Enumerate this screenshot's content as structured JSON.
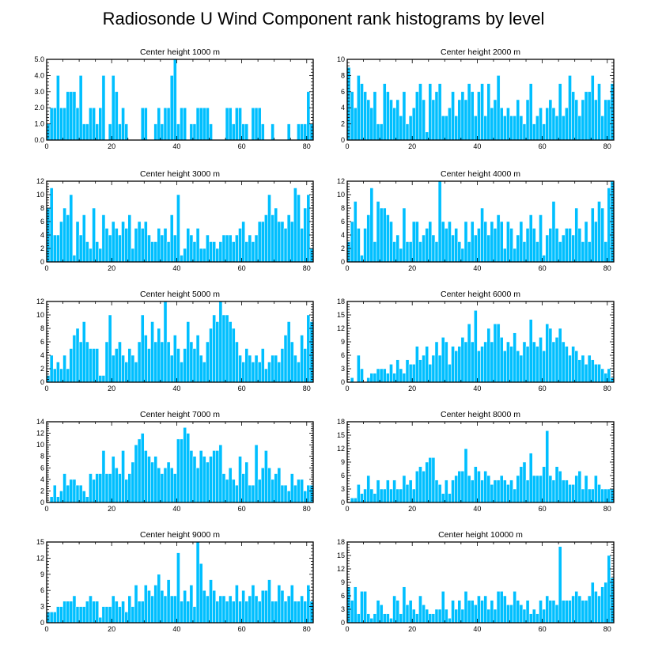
{
  "figure_title": "Radiosonde U Wind Component rank histograms by level",
  "colors": {
    "bar": "#00bfff",
    "bar_edge": "#ffffff",
    "frame": "#000000"
  },
  "chart_data": [
    {
      "type": "bar",
      "title": "Center height 1000 m",
      "x_start": 0,
      "xlim": [
        0,
        82
      ],
      "xticks": [
        0,
        20,
        40,
        60,
        80
      ],
      "ylim": [
        0,
        5
      ],
      "yticks": [
        0,
        1,
        2,
        3,
        4,
        5
      ],
      "ytick_labels": [
        "0.0",
        "1.0",
        "2.0",
        "3.0",
        "4.0",
        "5.0"
      ],
      "values": [
        1,
        2,
        2,
        4,
        2,
        2,
        3,
        3,
        3,
        2,
        4,
        1,
        1,
        2,
        2,
        1,
        2,
        4,
        0,
        1,
        4,
        3,
        1,
        2,
        1,
        0,
        0,
        0,
        0,
        2,
        2,
        0,
        0,
        1,
        2,
        1,
        2,
        2,
        4,
        5,
        1,
        2,
        2,
        0,
        1,
        1,
        2,
        2,
        2,
        2,
        1,
        0,
        0,
        0,
        0,
        2,
        2,
        1,
        2,
        2,
        1,
        1,
        0,
        2,
        2,
        2,
        1,
        0,
        0,
        1,
        0,
        0,
        0,
        0,
        1,
        0,
        0,
        1,
        1,
        1,
        3,
        1
      ]
    },
    {
      "type": "bar",
      "title": "Center height 2000 m",
      "x_start": 0,
      "xlim": [
        0,
        82
      ],
      "xticks": [
        0,
        20,
        40,
        60,
        80
      ],
      "ylim": [
        0,
        10
      ],
      "yticks": [
        0,
        2,
        4,
        6,
        8,
        10
      ],
      "ytick_labels": [
        "0",
        "2",
        "4",
        "6",
        "8",
        "10"
      ],
      "values": [
        9,
        6,
        4,
        8,
        7,
        6,
        5,
        4,
        6,
        2,
        2,
        7,
        6,
        5,
        4,
        5,
        3,
        6,
        2,
        3,
        4,
        6,
        7,
        5,
        1,
        7,
        5,
        6,
        7,
        3,
        3,
        4,
        6,
        3,
        5,
        6,
        5,
        7,
        6,
        3,
        6,
        7,
        3,
        7,
        4,
        5,
        8,
        4,
        3,
        4,
        3,
        3,
        5,
        3,
        2,
        5,
        7,
        2,
        3,
        4,
        2,
        4,
        5,
        4,
        3,
        7,
        3,
        4,
        8,
        6,
        5,
        3,
        5,
        6,
        6,
        8,
        5,
        7,
        3,
        5,
        5,
        7
      ]
    },
    {
      "type": "bar",
      "title": "Center height 3000 m",
      "x_start": 0,
      "xlim": [
        0,
        82
      ],
      "xticks": [
        0,
        20,
        40,
        60,
        80
      ],
      "ylim": [
        0,
        12
      ],
      "yticks": [
        0,
        2,
        4,
        6,
        8,
        10,
        12
      ],
      "ytick_labels": [
        "0",
        "2",
        "4",
        "6",
        "8",
        "10",
        "12"
      ],
      "values": [
        8,
        11,
        4,
        4,
        6,
        8,
        7,
        10,
        1,
        6,
        4,
        7,
        3,
        2,
        8,
        3,
        2,
        7,
        5,
        4,
        6,
        5,
        4,
        6,
        5,
        7,
        2,
        5,
        6,
        5,
        6,
        4,
        3,
        3,
        5,
        4,
        5,
        3,
        7,
        4,
        10,
        1,
        2,
        5,
        4,
        3,
        5,
        2,
        2,
        4,
        3,
        3,
        2,
        3,
        4,
        4,
        4,
        3,
        4,
        5,
        6,
        3,
        4,
        3,
        4,
        6,
        6,
        7,
        10,
        7,
        8,
        6,
        6,
        5,
        7,
        6,
        11,
        10,
        5,
        8,
        10,
        2
      ]
    },
    {
      "type": "bar",
      "title": "Center height 4000 m",
      "x_start": 0,
      "xlim": [
        0,
        82
      ],
      "xticks": [
        0,
        20,
        40,
        60,
        80
      ],
      "ylim": [
        0,
        12
      ],
      "yticks": [
        0,
        2,
        4,
        6,
        8,
        10,
        12
      ],
      "ytick_labels": [
        "0",
        "2",
        "4",
        "6",
        "8",
        "10",
        "12"
      ],
      "values": [
        3,
        6,
        9,
        5,
        1,
        5,
        7,
        11,
        3,
        9,
        8,
        8,
        7,
        6,
        3,
        4,
        2,
        8,
        3,
        3,
        6,
        6,
        3,
        4,
        5,
        6,
        4,
        3,
        12,
        6,
        5,
        6,
        4,
        5,
        3,
        2,
        6,
        3,
        6,
        4,
        5,
        8,
        6,
        4,
        6,
        5,
        7,
        6,
        2,
        6,
        5,
        2,
        4,
        6,
        3,
        5,
        7,
        5,
        3,
        7,
        1,
        4,
        5,
        9,
        5,
        3,
        4,
        5,
        5,
        4,
        8,
        5,
        3,
        6,
        3,
        8,
        6,
        9,
        8,
        3,
        11,
        12
      ]
    },
    {
      "type": "bar",
      "title": "Center height 5000 m",
      "x_start": 0,
      "xlim": [
        0,
        82
      ],
      "xticks": [
        0,
        20,
        40,
        60,
        80
      ],
      "ylim": [
        0,
        12
      ],
      "yticks": [
        0,
        2,
        4,
        6,
        8,
        10,
        12
      ],
      "ytick_labels": [
        "0",
        "2",
        "4",
        "6",
        "8",
        "10",
        "12"
      ],
      "values": [
        1,
        4,
        2,
        3,
        2,
        4,
        2,
        5,
        7,
        8,
        6,
        9,
        6,
        5,
        5,
        5,
        1,
        1,
        6,
        10,
        4,
        5,
        6,
        4,
        3,
        5,
        4,
        3,
        6,
        10,
        7,
        5,
        9,
        6,
        8,
        6,
        12,
        6,
        4,
        7,
        5,
        3,
        5,
        9,
        6,
        5,
        7,
        4,
        3,
        6,
        8,
        10,
        9,
        12,
        10,
        10,
        9,
        8,
        6,
        4,
        3,
        5,
        4,
        3,
        4,
        3,
        5,
        2,
        3,
        4,
        4,
        3,
        5,
        7,
        9,
        6,
        4,
        3,
        7,
        5,
        10,
        9
      ]
    },
    {
      "type": "bar",
      "title": "Center height 6000 m",
      "x_start": 0,
      "xlim": [
        0,
        82
      ],
      "xticks": [
        0,
        20,
        40,
        60,
        80
      ],
      "ylim": [
        0,
        18
      ],
      "yticks": [
        0,
        3,
        6,
        9,
        12,
        15,
        18
      ],
      "ytick_labels": [
        "0",
        "3",
        "6",
        "9",
        "12",
        "15",
        "18"
      ],
      "values": [
        0,
        1,
        0,
        6,
        3,
        0,
        1,
        2,
        2,
        3,
        3,
        3,
        2,
        4,
        2,
        5,
        3,
        2,
        5,
        4,
        4,
        8,
        5,
        6,
        8,
        4,
        6,
        9,
        6,
        10,
        9,
        4,
        8,
        7,
        8,
        10,
        9,
        13,
        9,
        16,
        7,
        8,
        9,
        12,
        9,
        13,
        13,
        10,
        7,
        9,
        8,
        11,
        7,
        6,
        9,
        8,
        14,
        9,
        8,
        10,
        7,
        13,
        12,
        9,
        10,
        12,
        9,
        8,
        6,
        8,
        7,
        5,
        6,
        4,
        6,
        5,
        4,
        4,
        3,
        2,
        3,
        1
      ]
    },
    {
      "type": "bar",
      "title": "Center height 7000 m",
      "x_start": 0,
      "xlim": [
        0,
        82
      ],
      "xticks": [
        0,
        20,
        40,
        60,
        80
      ],
      "ylim": [
        0,
        14
      ],
      "yticks": [
        0,
        2,
        4,
        6,
        8,
        10,
        12,
        14
      ],
      "ytick_labels": [
        "0",
        "2",
        "4",
        "6",
        "8",
        "10",
        "12",
        "14"
      ],
      "values": [
        0,
        1,
        3,
        1,
        2,
        5,
        3,
        4,
        4,
        3,
        3,
        2,
        1,
        5,
        4,
        5,
        5,
        9,
        5,
        5,
        8,
        6,
        5,
        9,
        4,
        5,
        7,
        10,
        11,
        12,
        9,
        8,
        7,
        8,
        6,
        5,
        6,
        7,
        6,
        5,
        11,
        11,
        13,
        12,
        9,
        8,
        6,
        9,
        8,
        7,
        8,
        9,
        9,
        10,
        5,
        4,
        6,
        4,
        3,
        8,
        5,
        7,
        3,
        3,
        10,
        4,
        6,
        9,
        6,
        4,
        5,
        6,
        3,
        3,
        2,
        5,
        3,
        4,
        4,
        2,
        3,
        3
      ]
    },
    {
      "type": "bar",
      "title": "Center height 8000 m",
      "x_start": 0,
      "xlim": [
        0,
        82
      ],
      "xticks": [
        0,
        20,
        40,
        60,
        80
      ],
      "ylim": [
        0,
        18
      ],
      "yticks": [
        0,
        3,
        6,
        9,
        12,
        15,
        18
      ],
      "ytick_labels": [
        "0",
        "3",
        "6",
        "9",
        "12",
        "15",
        "18"
      ],
      "values": [
        0,
        1,
        1,
        4,
        2,
        3,
        6,
        3,
        2,
        5,
        3,
        3,
        5,
        3,
        5,
        3,
        3,
        6,
        4,
        5,
        3,
        7,
        8,
        7,
        9,
        10,
        10,
        5,
        4,
        2,
        5,
        2,
        5,
        6,
        7,
        7,
        12,
        6,
        5,
        8,
        7,
        5,
        7,
        6,
        4,
        5,
        5,
        6,
        5,
        4,
        5,
        3,
        6,
        8,
        9,
        5,
        11,
        6,
        6,
        6,
        8,
        16,
        6,
        5,
        8,
        7,
        5,
        5,
        4,
        4,
        6,
        7,
        3,
        6,
        3,
        3,
        6,
        4,
        3,
        3,
        3,
        3
      ]
    },
    {
      "type": "bar",
      "title": "Center height 9000 m",
      "x_start": 0,
      "xlim": [
        0,
        82
      ],
      "xticks": [
        0,
        20,
        40,
        60,
        80
      ],
      "ylim": [
        0,
        15
      ],
      "yticks": [
        0,
        3,
        6,
        9,
        12,
        15
      ],
      "ytick_labels": [
        "0",
        "3",
        "6",
        "9",
        "12",
        "15"
      ],
      "values": [
        2,
        2,
        2,
        3,
        3,
        4,
        4,
        4,
        5,
        3,
        3,
        3,
        4,
        5,
        4,
        4,
        1,
        3,
        3,
        3,
        5,
        4,
        3,
        4,
        2,
        5,
        3,
        7,
        4,
        4,
        7,
        6,
        5,
        7,
        9,
        6,
        5,
        8,
        5,
        5,
        13,
        4,
        6,
        4,
        7,
        3,
        15,
        11,
        6,
        5,
        8,
        6,
        4,
        5,
        5,
        4,
        5,
        4,
        7,
        4,
        6,
        4,
        5,
        7,
        5,
        4,
        6,
        6,
        8,
        4,
        4,
        7,
        6,
        4,
        5,
        7,
        4,
        4,
        5,
        4,
        7,
        4
      ]
    },
    {
      "type": "bar",
      "title": "Center height 10000 m",
      "x_start": 0,
      "xlim": [
        0,
        82
      ],
      "xticks": [
        0,
        20,
        40,
        60,
        80
      ],
      "ylim": [
        0,
        18
      ],
      "yticks": [
        0,
        3,
        6,
        9,
        12,
        15,
        18
      ],
      "ytick_labels": [
        "0",
        "3",
        "6",
        "9",
        "12",
        "15",
        "18"
      ],
      "values": [
        8,
        5,
        8,
        2,
        7,
        7,
        2,
        1,
        2,
        5,
        4,
        2,
        2,
        1,
        6,
        5,
        2,
        8,
        4,
        5,
        3,
        2,
        6,
        4,
        3,
        2,
        2,
        3,
        3,
        7,
        3,
        1,
        5,
        3,
        5,
        3,
        7,
        5,
        5,
        4,
        6,
        5,
        6,
        3,
        5,
        3,
        7,
        7,
        6,
        4,
        4,
        7,
        5,
        4,
        3,
        5,
        2,
        3,
        2,
        5,
        3,
        6,
        5,
        5,
        4,
        17,
        5,
        5,
        5,
        6,
        7,
        6,
        5,
        5,
        6,
        9,
        7,
        6,
        8,
        9,
        15,
        10
      ]
    }
  ]
}
